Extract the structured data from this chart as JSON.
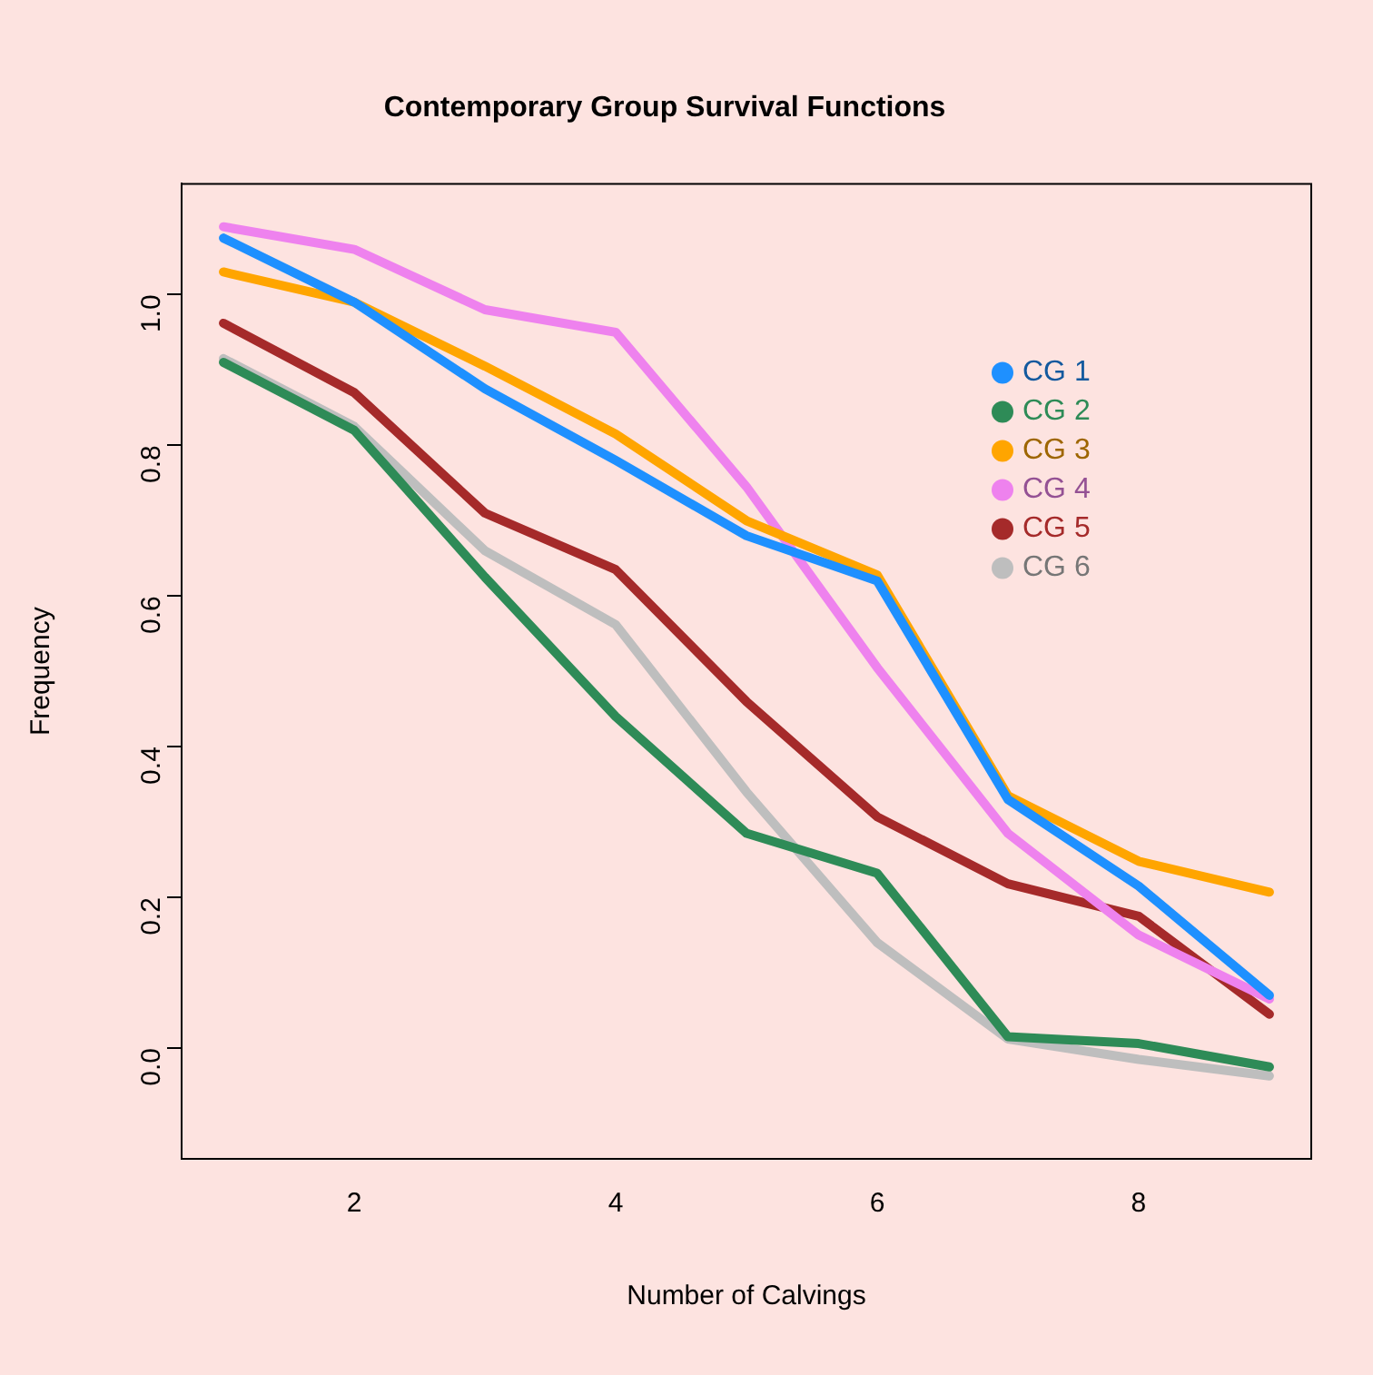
{
  "chart_data": {
    "type": "line",
    "title": "Contemporary Group Survival Functions",
    "xlabel": "Number of Calvings",
    "ylabel": "Frequency",
    "x": [
      1,
      2,
      3,
      4,
      5,
      6,
      7,
      8,
      9
    ],
    "xlim": [
      0.68,
      9.32
    ],
    "xticks": [
      2,
      4,
      6,
      8
    ],
    "ylim": [
      -0.147,
      1.147
    ],
    "yticks": [
      {
        "value": 0,
        "label": "0.0"
      },
      {
        "value": 0.2,
        "label": "0.2"
      },
      {
        "value": 0.4,
        "label": "0.4"
      },
      {
        "value": 0.6,
        "label": "0.6"
      },
      {
        "value": 0.8,
        "label": "0.8"
      },
      {
        "value": 1,
        "label": "1.0"
      }
    ],
    "grid": false,
    "legend": "top right",
    "marker": "none",
    "line_style": "solid",
    "series": [
      {
        "name": "CG 1",
        "color": "#1e90ff",
        "values": [
          1.075,
          0.99,
          0.875,
          0.78,
          0.68,
          0.62,
          0.33,
          0.215,
          0.07
        ]
      },
      {
        "name": "CG 2",
        "color": "#2e8b57",
        "values": [
          0.91,
          0.82,
          0.625,
          0.44,
          0.285,
          0.232,
          0.015,
          0.006,
          -0.025
        ]
      },
      {
        "name": "CG 3",
        "color": "#ffa500",
        "values": [
          1.03,
          0.99,
          0.905,
          0.815,
          0.7,
          0.628,
          0.335,
          0.248,
          0.207
        ]
      },
      {
        "name": "CG 4",
        "color": "#ee82ee",
        "values": [
          1.09,
          1.06,
          0.98,
          0.95,
          0.745,
          0.505,
          0.285,
          0.15,
          0.065
        ]
      },
      {
        "name": "CG 5",
        "color": "#a52a2a",
        "values": [
          0.962,
          0.87,
          0.71,
          0.635,
          0.46,
          0.307,
          0.218,
          0.175,
          0.045
        ]
      },
      {
        "name": "CG 6",
        "color": "#bebebe",
        "values": [
          0.915,
          0.825,
          0.66,
          0.562,
          0.34,
          0.14,
          0.012,
          -0.015,
          -0.037
        ]
      }
    ]
  }
}
